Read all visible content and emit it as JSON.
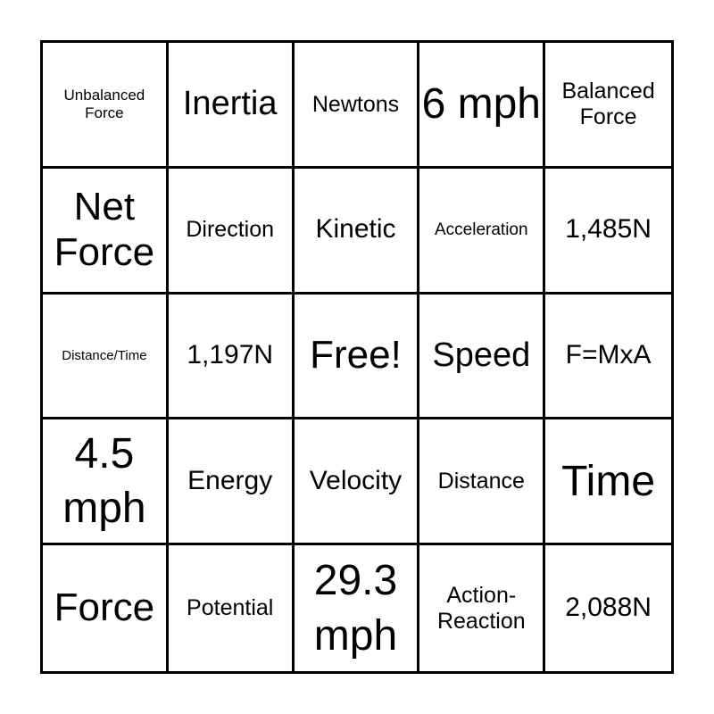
{
  "board": {
    "cells": [
      [
        "Unbalanced Force",
        "Inertia",
        "Newtons",
        "6 mph",
        "Balanced Force"
      ],
      [
        "Net Force",
        "Direction",
        "Kinetic",
        "Acceleration",
        "1,485N"
      ],
      [
        "Distance/Time",
        "1,197N",
        "Free!",
        "Speed",
        "F=MxA"
      ],
      [
        "4.5 mph",
        "Energy",
        "Velocity",
        "Distance",
        "Time"
      ],
      [
        "Force",
        "Potential",
        "29.3 mph",
        "Action-Reaction",
        "2,088N"
      ]
    ]
  }
}
